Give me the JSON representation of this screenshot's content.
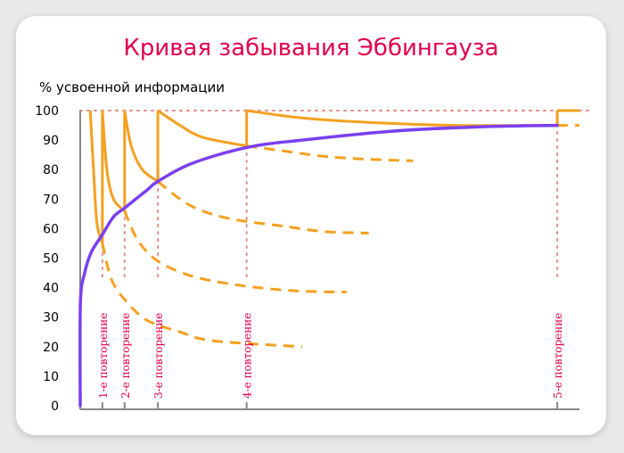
{
  "chart_data": {
    "type": "line",
    "title": "Кривая забывания Эббингауза",
    "ylabel": "% усвоенной информации",
    "xlabel": "",
    "ylim": [
      0,
      100
    ],
    "yticks": [
      0,
      10,
      20,
      30,
      40,
      50,
      60,
      70,
      80,
      90,
      100
    ],
    "grid": false,
    "colors": {
      "title": "#e0004d",
      "repetition": "#e0004d",
      "retention": "#f5a020",
      "learning": "#7a3ff0",
      "guide": "#e58a8a",
      "axis": "#888888"
    },
    "repetitions": [
      {
        "label": "1-е повторение",
        "t": 1
      },
      {
        "label": "2-е повторение",
        "t": 2
      },
      {
        "label": "3-е повторение",
        "t": 3.5
      },
      {
        "label": "4-е повторение",
        "t": 7.5
      },
      {
        "label": "5-е повторение",
        "t": 21.5
      }
    ],
    "series": [
      {
        "style": "solid",
        "segments": [
          [
            [
              0.45,
              100
            ],
            [
              0.6,
              80
            ],
            [
              0.75,
              62
            ],
            [
              1,
              55
            ]
          ],
          [
            [
              1,
              100
            ],
            [
              1.2,
              80
            ],
            [
              1.5,
              70
            ],
            [
              2,
              66
            ]
          ],
          [
            [
              2,
              100
            ],
            [
              2.3,
              88
            ],
            [
              2.8,
              80
            ],
            [
              3.5,
              76
            ]
          ],
          [
            [
              3.5,
              100
            ],
            [
              4.5,
              95
            ],
            [
              5.5,
              91
            ],
            [
              7.5,
              88
            ]
          ],
          [
            [
              7.5,
              100
            ],
            [
              10,
              97.5
            ],
            [
              13,
              96
            ],
            [
              17,
              95
            ],
            [
              21.5,
              95
            ]
          ],
          [
            [
              21.5,
              100
            ],
            [
              22.5,
              100
            ]
          ]
        ]
      },
      {
        "style": "dashed",
        "segments": [
          [
            [
              1,
              55
            ],
            [
              1.4,
              43
            ],
            [
              2,
              36
            ],
            [
              3,
              29
            ],
            [
              4.5,
              25
            ],
            [
              6,
              22
            ],
            [
              10,
              20
            ]
          ],
          [
            [
              2,
              66
            ],
            [
              2.6,
              56
            ],
            [
              3.5,
              49
            ],
            [
              5,
              44
            ],
            [
              7,
              41
            ],
            [
              9.5,
              39
            ],
            [
              12,
              38.5
            ]
          ],
          [
            [
              3.5,
              76
            ],
            [
              4.5,
              70
            ],
            [
              5.5,
              66
            ],
            [
              7,
              63
            ],
            [
              9,
              61
            ],
            [
              11,
              59
            ],
            [
              13,
              58.5
            ]
          ],
          [
            [
              7.5,
              88
            ],
            [
              9,
              86.5
            ],
            [
              11,
              84.5
            ],
            [
              13,
              83.5
            ],
            [
              15,
              83
            ]
          ],
          [
            [
              21.5,
              95
            ],
            [
              22.5,
              95
            ]
          ]
        ]
      },
      {
        "style": "solid",
        "points": [
          [
            0,
            0
          ],
          [
            0.01,
            35
          ],
          [
            0.2,
            45
          ],
          [
            0.5,
            52
          ],
          [
            1,
            58
          ],
          [
            1.5,
            64
          ],
          [
            2,
            67
          ],
          [
            3,
            73
          ],
          [
            3.5,
            76
          ],
          [
            5,
            82
          ],
          [
            7.5,
            87.5
          ],
          [
            10,
            90
          ],
          [
            14,
            93
          ],
          [
            18,
            94.5
          ],
          [
            21.5,
            95
          ]
        ]
      }
    ]
  }
}
